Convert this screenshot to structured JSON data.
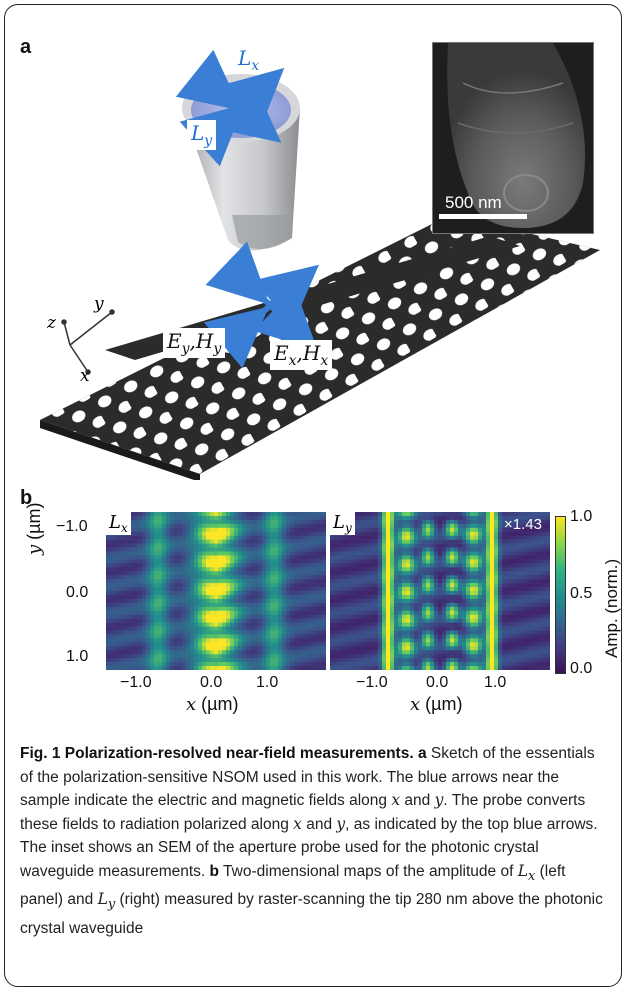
{
  "panel_a": {
    "letter": "a",
    "probe_labels": {
      "lx": "L",
      "lx_sub": "x",
      "ly": "L",
      "ly_sub": "y"
    },
    "field_labels": {
      "ey": "E",
      "ey_sub": "y",
      "hy": "H",
      "hy_sub": "y",
      "ex": "E",
      "ex_sub": "x",
      "hx": "H",
      "hx_sub": "x"
    },
    "axes": {
      "x": "x",
      "y": "y",
      "z": "z"
    },
    "inset_scale": "500 nm"
  },
  "panel_b": {
    "letter": "b",
    "left_label": {
      "main": "L",
      "sub": "x"
    },
    "right_label": {
      "main": "L",
      "sub": "y"
    },
    "factor": "×1.43",
    "y_axis_label": "(µm)",
    "y_axis_var": "y",
    "x_axis_label": "(µm)",
    "x_axis_var": "x",
    "y_ticks": [
      "−1.0",
      "0.0",
      "1.0"
    ],
    "x_ticks": [
      "−1.0",
      "0.0",
      "1.0"
    ],
    "colorbar_ticks": [
      "1.0",
      "0.5",
      "0.0"
    ],
    "colorbar_label": "Amp. (norm.)"
  },
  "caption": {
    "title": "Fig. 1 Polarization-resolved near-field measurements.",
    "a_letter": "a",
    "a_text": " Sketch of the essentials of the polarization-sensitive NSOM used in this work. The blue arrows near the sample indicate the electric and magnetic fields along ",
    "x1": "x",
    "and1": " and ",
    "y1": "y",
    "a_text2": ". The probe converts these fields to radiation polarized along ",
    "x2": "x",
    "and2": " and ",
    "y2": "y",
    "a_text3": ", as indicated by the top blue arrows. The inset shows an SEM of the aperture probe used for the photonic crystal waveguide measurements. ",
    "b_letter": "b",
    "b_text": " Two-dimensional maps of the amplitude of ",
    "lx": "L",
    "lx_sub": "x",
    "b_text2": " (left panel) and ",
    "ly": "L",
    "ly_sub": "y",
    "b_text3": " (right) measured by raster-scanning the tip 280 nm above the photonic crystal waveguide"
  },
  "colors": {
    "arrow": "#3a7fd5",
    "label": "#1f6fd0"
  }
}
